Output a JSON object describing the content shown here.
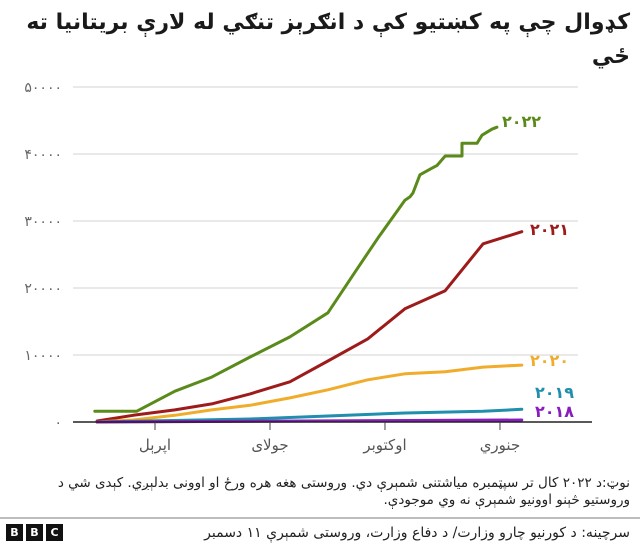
{
  "title": "کډوال چې په کښتیو کې د انګرېز تنګي له لارې بریتانیا ته ځي",
  "note": "نوټ:د ۲۰۲۲ کال تر سپټمبره میاشتنی شمېرې دي. وروستی هغه هره ورځ او اوونی بدلېږي. کېدی شي د وروستیو څېنو اوونیو شمېرې نه وي موجودې.",
  "source": "سرچینه: د کورنیو چارو وزارت/ د دفاع وزارت، وروستی شمېرې ۱۱ دسمبر",
  "logo": {
    "letters": [
      "B",
      "B",
      "C"
    ]
  },
  "chart_data": {
    "type": "line",
    "title": "کډوال چې په کښتیو کې د انګرېز تنګي له لارې بریتانیا ته ځي",
    "xlabel": "",
    "ylabel": "",
    "ylim": [
      0,
      50000
    ],
    "grid": true,
    "legend_position": "inline-right",
    "y_ticks": [
      {
        "value": 0,
        "label": "۰"
      },
      {
        "value": 10000,
        "label": "۱۰۰۰۰"
      },
      {
        "value": 20000,
        "label": "۲۰۰۰۰"
      },
      {
        "value": 30000,
        "label": "۳۰۰۰۰"
      },
      {
        "value": 40000,
        "label": "۴۰۰۰۰"
      },
      {
        "value": 50000,
        "label": "۵۰۰۰۰"
      }
    ],
    "x_ticks": [
      {
        "month": 4.0,
        "label": "اپرېل"
      },
      {
        "month": 7.0,
        "label": "جولای"
      },
      {
        "month": 10.0,
        "label": "اوکتوبر"
      },
      {
        "month": 13.0,
        "label": "جنوري"
      }
    ],
    "x_unit": "month (1 = start of Jan; 13 = next January)",
    "series": [
      {
        "name": "2022",
        "label": "۲۰۲۲",
        "color": "#5a8a1a",
        "points": [
          [
            2.49,
            1600
          ],
          [
            2.43,
            1600
          ],
          [
            3.52,
            1600
          ],
          [
            4.52,
            4600
          ],
          [
            5.48,
            6700
          ],
          [
            6.48,
            9700
          ],
          [
            7.52,
            12700
          ],
          [
            8.51,
            16300
          ],
          [
            9.22,
            22400
          ],
          [
            9.82,
            27500
          ],
          [
            10.52,
            33100
          ],
          [
            10.65,
            33600
          ],
          [
            10.73,
            34200
          ],
          [
            10.91,
            36900
          ],
          [
            11.23,
            37900
          ],
          [
            11.36,
            38300
          ],
          [
            11.57,
            39700
          ],
          [
            12.01,
            39700
          ],
          [
            12.01,
            41600
          ],
          [
            12.4,
            41600
          ],
          [
            12.53,
            42800
          ],
          [
            12.79,
            43700
          ],
          [
            12.92,
            44000
          ]
        ]
      },
      {
        "name": "2021",
        "label": "۲۰۲۱",
        "color": "#9e1b1b",
        "points": [
          [
            2.49,
            150
          ],
          [
            3.43,
            1000
          ],
          [
            4.52,
            1800
          ],
          [
            5.48,
            2700
          ],
          [
            6.48,
            4200
          ],
          [
            7.52,
            6000
          ],
          [
            8.51,
            9100
          ],
          [
            9.55,
            12400
          ],
          [
            10.52,
            16900
          ],
          [
            11.57,
            19600
          ],
          [
            12.56,
            26600
          ],
          [
            13.57,
            28400
          ]
        ]
      },
      {
        "name": "2020",
        "label": "۲۰۲۰",
        "color": "#f0ac2a",
        "points": [
          [
            2.49,
            0
          ],
          [
            3.43,
            300
          ],
          [
            4.52,
            1000
          ],
          [
            5.48,
            1800
          ],
          [
            6.48,
            2500
          ],
          [
            7.52,
            3600
          ],
          [
            8.51,
            4800
          ],
          [
            9.55,
            6300
          ],
          [
            10.52,
            7200
          ],
          [
            11.57,
            7500
          ],
          [
            12.56,
            8200
          ],
          [
            13.57,
            8500
          ]
        ]
      },
      {
        "name": "2019",
        "label": "۲۰۱۹",
        "color": "#1f8fad",
        "points": [
          [
            2.49,
            0
          ],
          [
            6.48,
            450
          ],
          [
            8.51,
            900
          ],
          [
            10.52,
            1350
          ],
          [
            12.56,
            1600
          ],
          [
            13.57,
            1900
          ]
        ]
      },
      {
        "name": "2018",
        "label": "۲۰۱۸",
        "color": "#8a1bbf",
        "points": [
          [
            2.49,
            0
          ],
          [
            13.57,
            300
          ]
        ]
      }
    ]
  }
}
